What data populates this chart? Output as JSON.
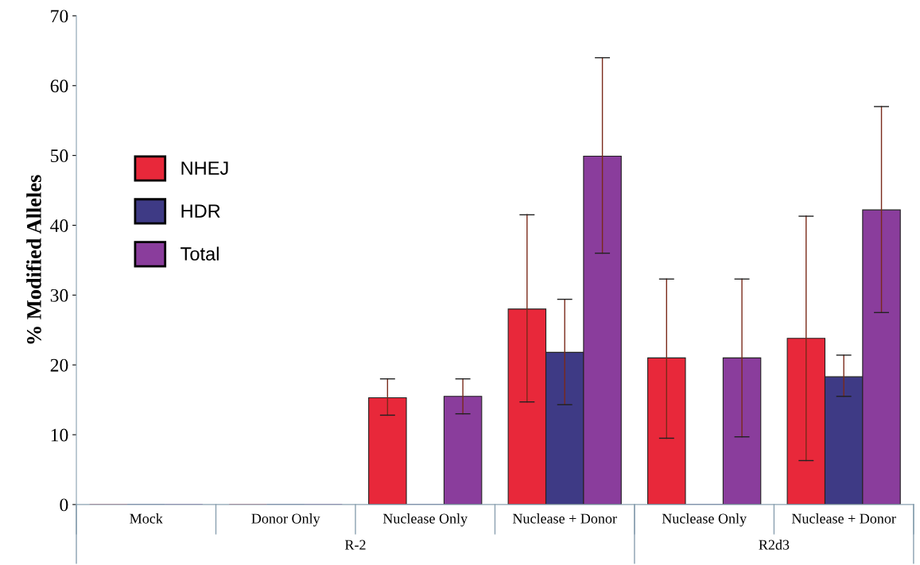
{
  "chart_data": {
    "type": "bar",
    "ylabel": "% Modified Alleles",
    "categories": [
      "Mock",
      "Donor Only",
      "Nuclease Only",
      "Nuclease + Donor",
      "Nuclease Only",
      "Nuclease + Donor"
    ],
    "series": [
      {
        "name": "NHEJ",
        "color": "#e8283a",
        "values": [
          0,
          0,
          15.3,
          28.0,
          21.0,
          23.8
        ],
        "errors": [
          null,
          null,
          [
            12.8,
            18.0
          ],
          [
            14.7,
            41.5
          ],
          [
            9.5,
            32.3
          ],
          [
            6.3,
            41.3
          ]
        ]
      },
      {
        "name": "HDR",
        "color": "#3e3a85",
        "values": [
          0,
          0,
          0,
          21.8,
          0,
          18.3
        ],
        "errors": [
          null,
          null,
          null,
          [
            14.3,
            29.4
          ],
          null,
          [
            15.5,
            21.4
          ]
        ]
      },
      {
        "name": "Total",
        "color": "#8a3d9c",
        "values": [
          0,
          0,
          15.5,
          49.9,
          21.0,
          42.2
        ],
        "errors": [
          null,
          null,
          [
            13.0,
            18.0
          ],
          [
            36.0,
            64.0
          ],
          [
            9.7,
            32.3
          ],
          [
            27.5,
            57.0
          ]
        ]
      }
    ],
    "annotations": [
      "R-2",
      "R2d3"
    ],
    "ylim": [
      0,
      70
    ],
    "yticks": [
      0,
      10,
      20,
      30,
      40,
      50,
      60,
      70
    ],
    "grid": false,
    "legend": "left"
  }
}
